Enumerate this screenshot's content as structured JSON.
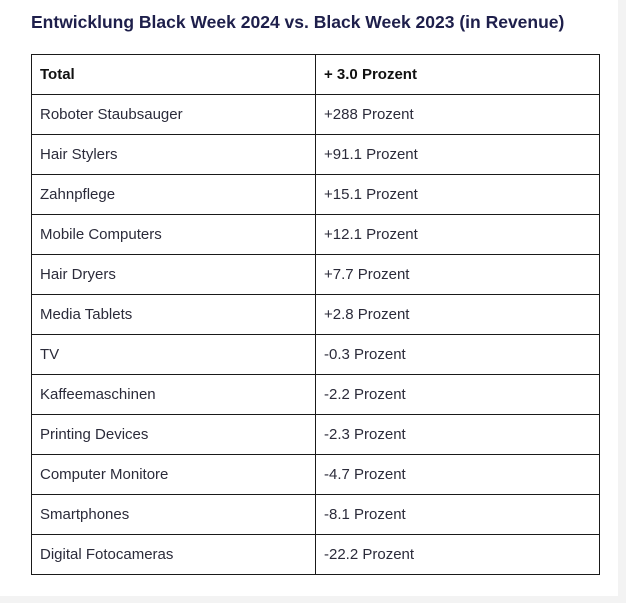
{
  "title": "Entwicklung Black Week 2024 vs. Black Week 2023 (in Revenue)",
  "header": {
    "category": "Total",
    "change": "+ 3.0 Prozent"
  },
  "rows": [
    {
      "category": "Roboter Staubsauger",
      "change": "+288 Prozent"
    },
    {
      "category": "Hair Stylers",
      "change": "+91.1 Prozent"
    },
    {
      "category": "Zahnpflege",
      "change": "+15.1 Prozent"
    },
    {
      "category": "Mobile Computers",
      "change": "+12.1 Prozent"
    },
    {
      "category": "Hair Dryers",
      "change": "+7.7 Prozent"
    },
    {
      "category": "Media Tablets",
      "change": "+2.8 Prozent"
    },
    {
      "category": "TV",
      "change": "-0.3 Prozent"
    },
    {
      "category": "Kaffeemaschinen",
      "change": "-2.2 Prozent"
    },
    {
      "category": "Printing Devices",
      "change": "-2.3 Prozent"
    },
    {
      "category": "Computer Monitore",
      "change": "-4.7 Prozent"
    },
    {
      "category": "Smartphones",
      "change": "-8.1 Prozent"
    },
    {
      "category": "Digital Fotocameras",
      "change": "-22.2 Prozent"
    }
  ]
}
